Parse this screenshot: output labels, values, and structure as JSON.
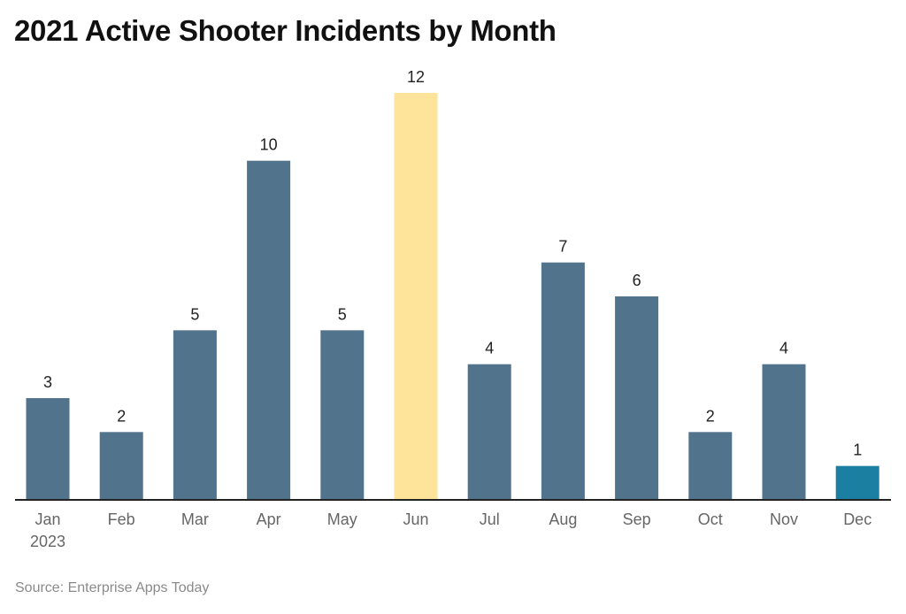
{
  "title": "2021 Active Shooter Incidents by Month",
  "source": "Source: Enterprise Apps Today",
  "chart_data": {
    "type": "bar",
    "title": "2021 Active Shooter Incidents by Month",
    "categories": [
      "Jan",
      "Feb",
      "Mar",
      "Apr",
      "May",
      "Jun",
      "Jul",
      "Aug",
      "Sep",
      "Oct",
      "Nov",
      "Dec"
    ],
    "category_sublabels": [
      "2023",
      "",
      "",
      "",
      "",
      "",
      "",
      "",
      "",
      "",
      "",
      ""
    ],
    "values": [
      3,
      2,
      5,
      10,
      5,
      12,
      4,
      7,
      6,
      2,
      4,
      1
    ],
    "ylim": [
      0,
      12
    ],
    "grid": false,
    "data_labels": true,
    "colors": {
      "default": "#52738c",
      "highlight_max": "#fde49a",
      "highlight_last": "#1a7fa0"
    },
    "bar_colors": [
      "#52738c",
      "#52738c",
      "#52738c",
      "#52738c",
      "#52738c",
      "#fde49a",
      "#52738c",
      "#52738c",
      "#52738c",
      "#52738c",
      "#52738c",
      "#1a7fa0"
    ]
  }
}
